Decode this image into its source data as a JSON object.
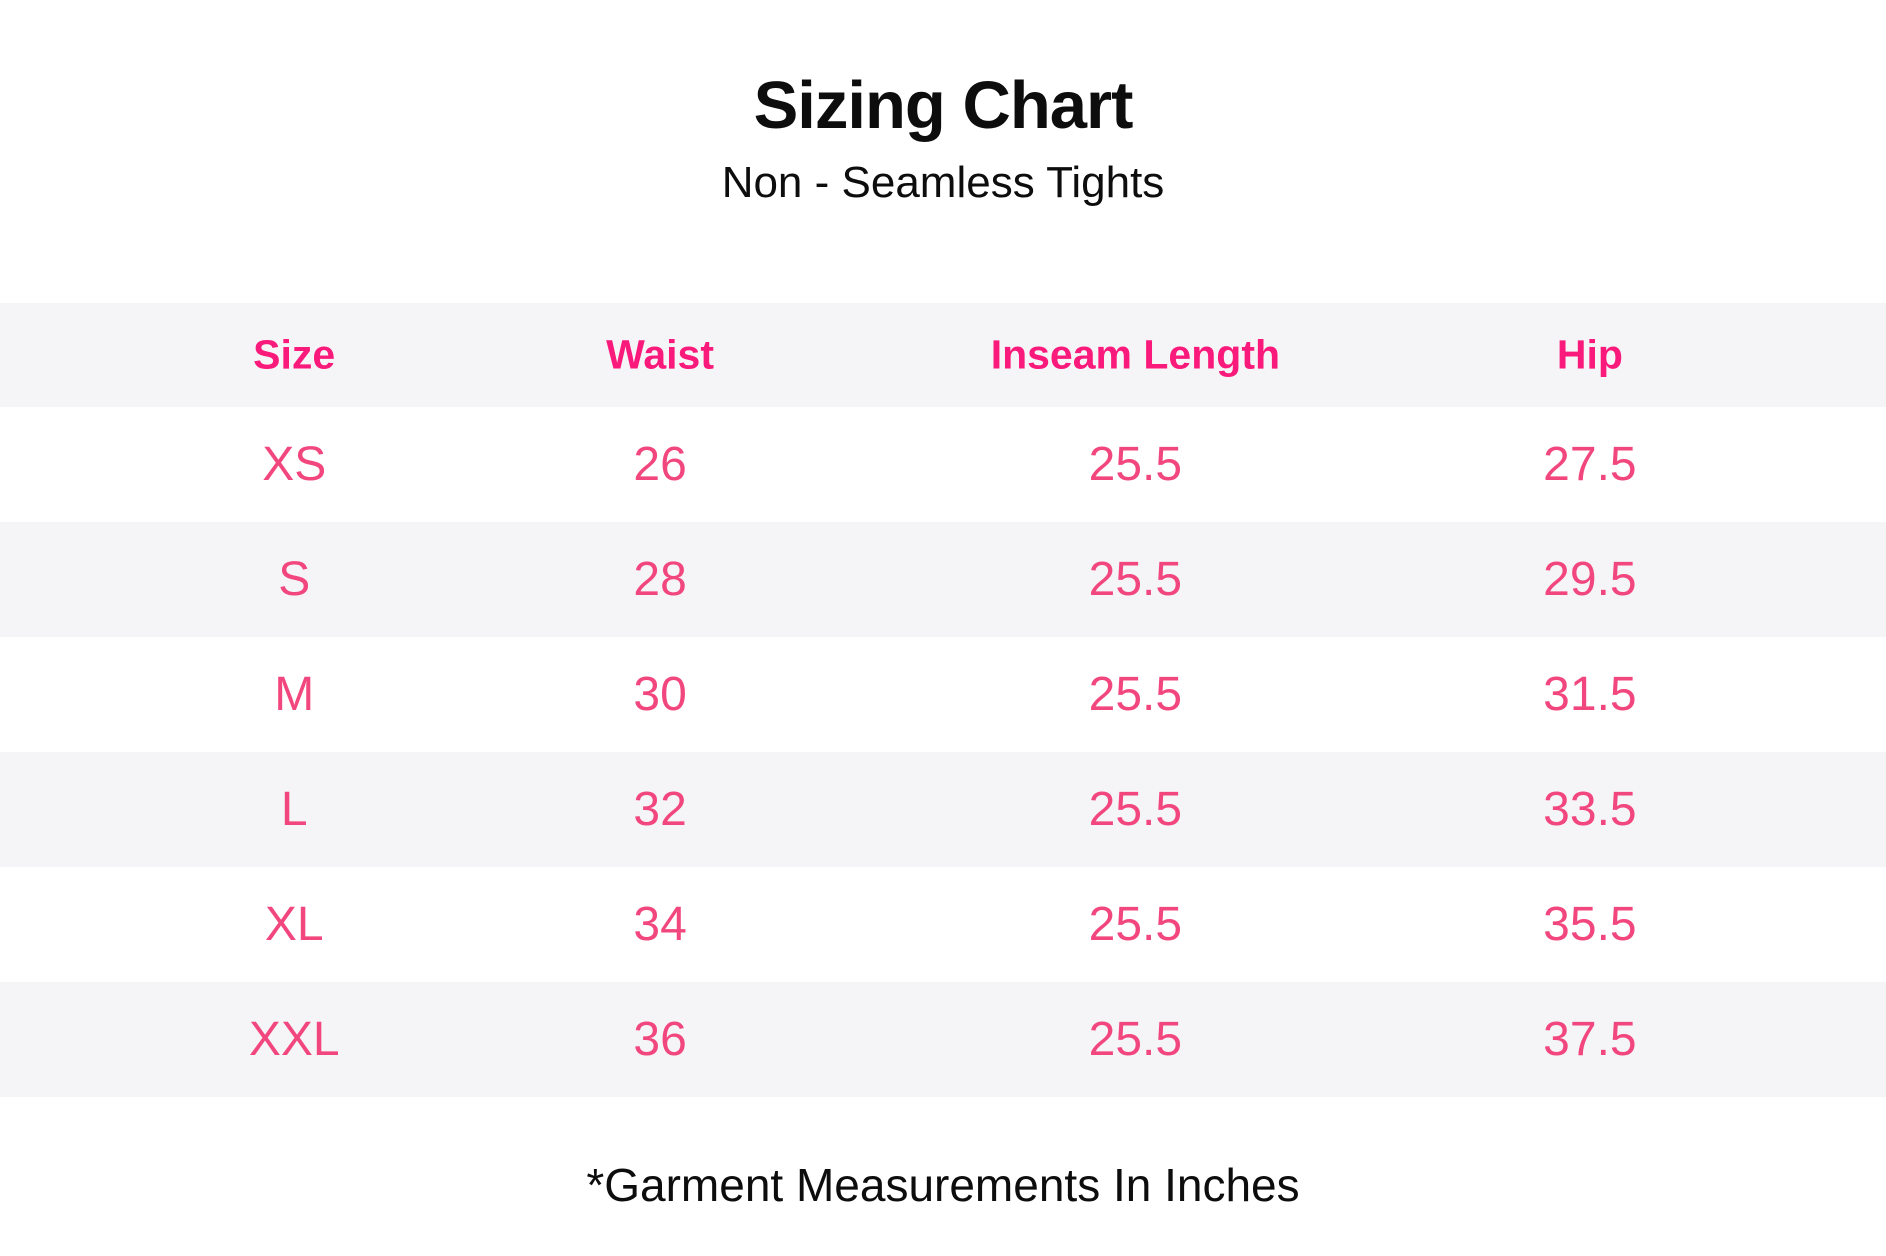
{
  "header": {
    "title": "Sizing Chart",
    "subtitle": "Non - Seamless Tights"
  },
  "footnote": "*Garment Measurements In Inches",
  "colors": {
    "accent_header": "#FA1A7B",
    "accent_values": "#F2477E",
    "stripe": "#F5F5F7",
    "ink": "#0D0D0D",
    "background": "#FFFFFF"
  },
  "chart_data": {
    "type": "table",
    "title": "Sizing Chart",
    "subtitle": "Non - Seamless Tights",
    "columns": [
      "Size",
      "Waist",
      "Inseam Length",
      "Hip"
    ],
    "rows": [
      [
        "XS",
        "26",
        "25.5",
        "27.5"
      ],
      [
        "S",
        "28",
        "25.5",
        "29.5"
      ],
      [
        "M",
        "30",
        "25.5",
        "31.5"
      ],
      [
        "L",
        "32",
        "25.5",
        "33.5"
      ],
      [
        "XL",
        "34",
        "25.5",
        "35.5"
      ],
      [
        "XXL",
        "36",
        "25.5",
        "37.5"
      ]
    ],
    "note": "*Garment Measurements In Inches",
    "layout": {
      "header_row_shaded": true,
      "striped_data_rows": [
        "S",
        "L",
        "XXL"
      ],
      "text_alignment": "center",
      "grid_lines": false
    }
  }
}
